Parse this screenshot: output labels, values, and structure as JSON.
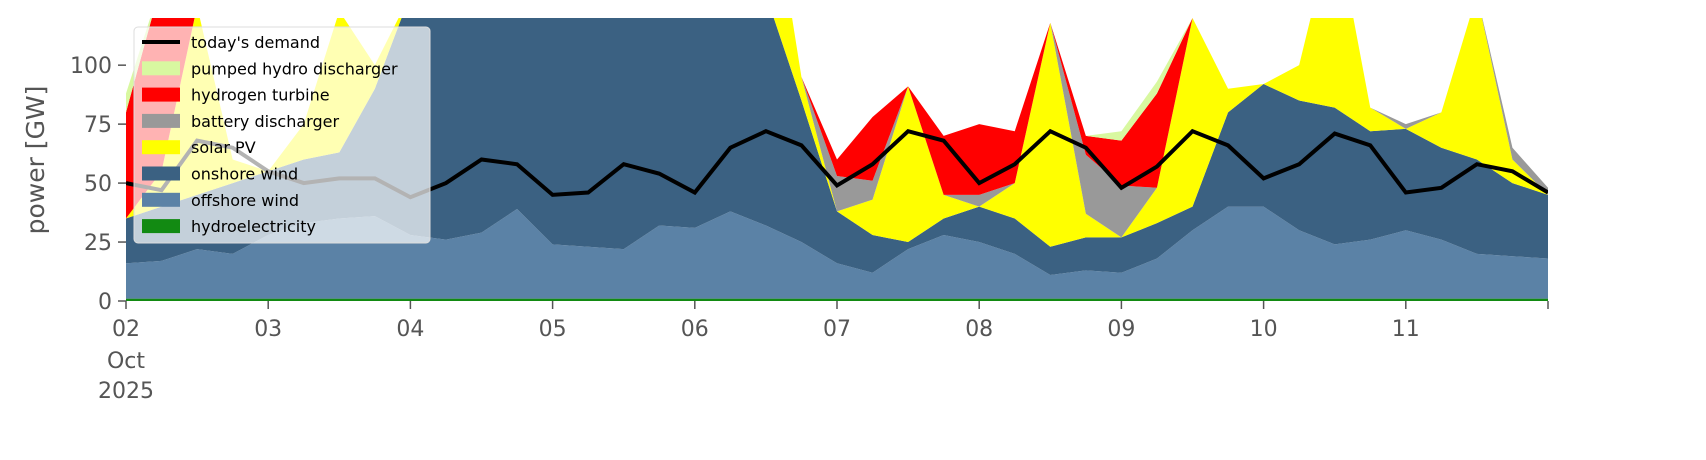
{
  "chart_data": {
    "type": "area",
    "y_label": "power [GW]",
    "x": [
      2,
      2.25,
      2.5,
      2.75,
      3,
      3.25,
      3.5,
      3.75,
      4,
      4.25,
      4.5,
      4.75,
      5,
      5.25,
      5.5,
      5.75,
      6,
      6.25,
      6.5,
      6.75,
      7,
      7.25,
      7.5,
      7.75,
      8,
      8.25,
      8.5,
      8.75,
      9,
      9.25,
      9.5,
      9.75,
      10,
      10.25,
      10.5,
      10.75,
      11,
      11.25,
      11.5,
      11.75,
      12
    ],
    "xlim": [
      2,
      12
    ],
    "xticks": [
      {
        "value": 2,
        "label": "02"
      },
      {
        "value": 3,
        "label": "03"
      },
      {
        "value": 4,
        "label": "04"
      },
      {
        "value": 5,
        "label": "05"
      },
      {
        "value": 6,
        "label": "06"
      },
      {
        "value": 7,
        "label": "07"
      },
      {
        "value": 8,
        "label": "08"
      },
      {
        "value": 9,
        "label": "09"
      },
      {
        "value": 10,
        "label": "10"
      },
      {
        "value": 11,
        "label": "11"
      },
      12
    ],
    "x_tick_sublabels": [
      "Oct",
      "2025"
    ],
    "ylim": [
      0,
      120
    ],
    "yticks": [
      0,
      25,
      50,
      75,
      100
    ],
    "legend": "upper left",
    "series": [
      {
        "name": "today's demand",
        "type": "line",
        "color": "#000000",
        "values": [
          50,
          47,
          68,
          65,
          55,
          50,
          52,
          52,
          44,
          50,
          60,
          58,
          45,
          46,
          58,
          54,
          46,
          65,
          72,
          66,
          49,
          58,
          72,
          68,
          50,
          58,
          72,
          65,
          48,
          57,
          72,
          66,
          52,
          58,
          71,
          66,
          46,
          48,
          58,
          55,
          46
        ]
      },
      {
        "name": "pumped hydro discharger",
        "type": "area",
        "color": "#d8f8a0",
        "values": [
          8,
          0,
          0,
          0,
          0,
          0,
          0,
          0,
          0,
          0,
          0,
          0,
          0,
          0,
          0,
          0,
          0,
          0,
          0,
          0,
          0,
          0,
          0,
          0,
          0,
          0,
          0,
          0,
          4,
          5,
          0,
          0,
          0,
          0,
          0,
          0,
          0,
          0,
          0,
          0,
          0
        ]
      },
      {
        "name": "hydrogen turbine",
        "type": "area",
        "color": "#ff0000",
        "values": [
          45,
          80,
          0,
          0,
          0,
          0,
          0,
          0,
          0,
          0,
          0,
          0,
          0,
          0,
          0,
          0,
          0,
          0,
          0,
          0,
          7,
          27,
          0,
          25,
          30,
          22,
          0,
          8,
          19,
          40,
          0,
          0,
          0,
          0,
          0,
          0,
          0,
          0,
          0,
          0,
          0
        ]
      },
      {
        "name": "battery discharger",
        "type": "area",
        "color": "#999999",
        "values": [
          0,
          0,
          0,
          0,
          0,
          0,
          0,
          0,
          0,
          0,
          0,
          0,
          0,
          0,
          0,
          0,
          0,
          0,
          0,
          0,
          15,
          8,
          0,
          0,
          5,
          0,
          0,
          25,
          22,
          0,
          0,
          0,
          0,
          0,
          0,
          0,
          2,
          0,
          0,
          5,
          3
        ]
      },
      {
        "name": "solar PV",
        "type": "area",
        "color": "#ffff00",
        "values": [
          0,
          15,
          80,
          10,
          0,
          15,
          60,
          10,
          0,
          15,
          0,
          10,
          0,
          15,
          0,
          10,
          0,
          15,
          60,
          10,
          0,
          15,
          66,
          10,
          0,
          15,
          95,
          10,
          0,
          15,
          80,
          10,
          0,
          15,
          80,
          10,
          0,
          15,
          70,
          10,
          0
        ]
      },
      {
        "name": "onshore wind",
        "type": "area",
        "color": "#3b6182",
        "values": [
          19,
          23,
          23,
          30,
          27,
          27,
          28,
          54,
          102,
          104,
          101,
          91,
          106,
          107,
          108,
          98,
          99,
          92,
          98,
          60,
          22,
          16,
          3,
          7,
          15,
          15,
          12,
          14,
          15,
          15,
          10,
          40,
          52,
          55,
          58,
          46,
          43,
          39,
          40,
          31,
          27
        ]
      },
      {
        "name": "offshore wind",
        "type": "area",
        "color": "#5b82a6",
        "values": [
          15,
          16,
          21,
          19,
          27,
          32,
          34,
          35,
          27,
          25,
          28,
          38,
          23,
          22,
          21,
          31,
          30,
          37,
          31,
          24,
          15,
          11,
          21,
          27,
          24,
          19,
          10,
          12,
          11,
          17,
          29,
          39,
          39,
          29,
          23,
          25,
          29,
          25,
          19,
          18,
          17
        ]
      },
      {
        "name": "hydroelectricity",
        "type": "area",
        "color": "#128a12",
        "values": [
          1,
          1,
          1,
          1,
          1,
          1,
          1,
          1,
          1,
          1,
          1,
          1,
          1,
          1,
          1,
          1,
          1,
          1,
          1,
          1,
          1,
          1,
          1,
          1,
          1,
          1,
          1,
          1,
          1,
          1,
          1,
          1,
          1,
          1,
          1,
          1,
          1,
          1,
          1,
          1,
          1
        ]
      }
    ]
  }
}
